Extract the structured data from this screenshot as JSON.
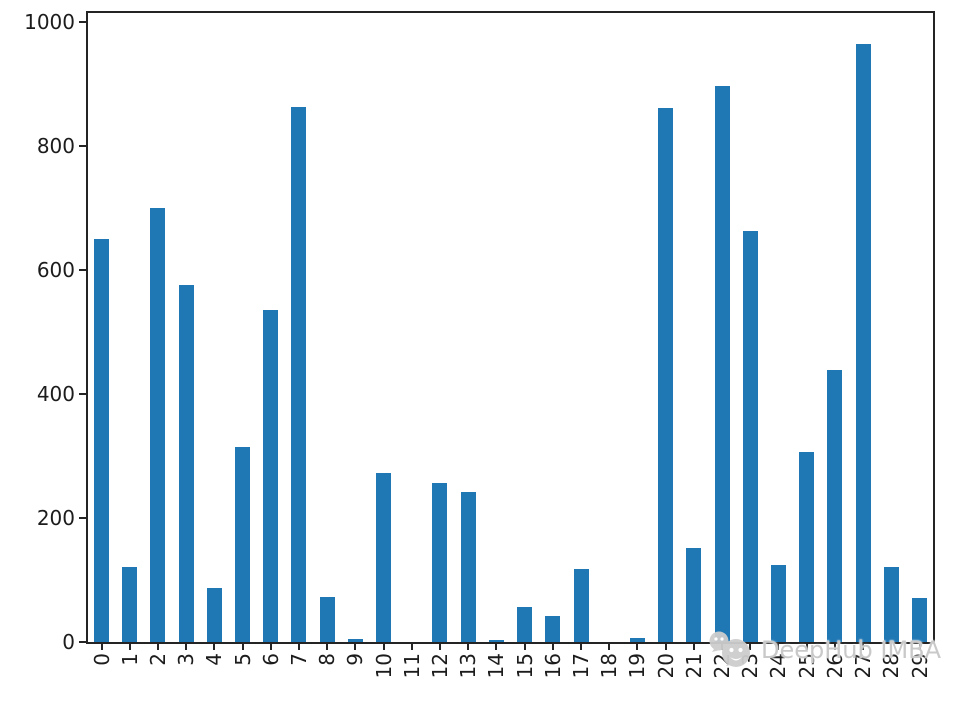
{
  "watermark": {
    "text": "DeepHub IMBA",
    "icon": "wechat-icon",
    "color": "#c9c9c9"
  },
  "axis": {
    "spine_color": "#242424",
    "tick_label_color": "#1c1c1c"
  },
  "chart_data": {
    "type": "bar",
    "title": "",
    "xlabel": "",
    "ylabel": "",
    "categories": [
      "0",
      "1",
      "2",
      "3",
      "4",
      "5",
      "6",
      "7",
      "8",
      "9",
      "10",
      "11",
      "12",
      "13",
      "14",
      "15",
      "16",
      "17",
      "18",
      "19",
      "20",
      "21",
      "22",
      "23",
      "24",
      "25",
      "26",
      "27",
      "28",
      "29"
    ],
    "values": [
      651,
      121,
      700,
      576,
      87,
      315,
      535,
      863,
      73,
      5,
      273,
      0,
      256,
      242,
      4,
      56,
      42,
      118,
      0,
      7,
      862,
      152,
      897,
      663,
      124,
      306,
      439,
      965,
      121,
      71
    ],
    "bar_color": "#1f77b4",
    "yticks": [
      0,
      200,
      400,
      600,
      800,
      1000
    ],
    "ylim": [
      0,
      1015
    ],
    "grid": false,
    "legend": null,
    "x_tick_rotation": 90
  }
}
